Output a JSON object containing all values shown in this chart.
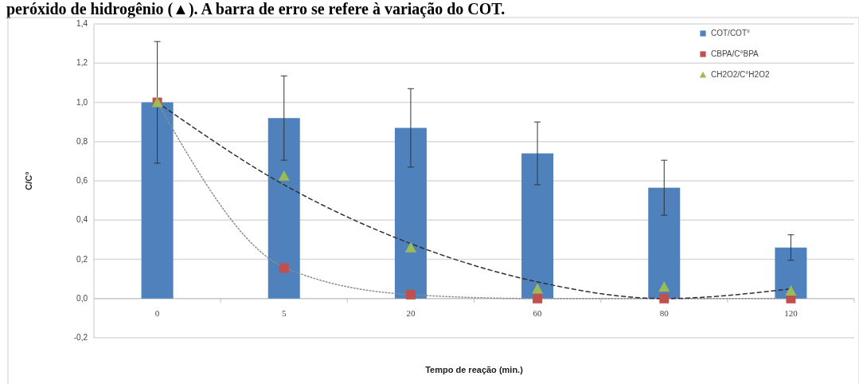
{
  "chart_data": {
    "type": "bar",
    "title": "peróxido de hidrogênio (▲). A barra de erro se refere à variação do COT.",
    "xlabel": "Tempo de reação (min.)",
    "ylabel": "C/C°",
    "categories": [
      "0",
      "5",
      "20",
      "60",
      "80",
      "120"
    ],
    "series": [
      {
        "name": "COT/COT°",
        "color": "#4f81bd",
        "values": [
          1.0,
          0.92,
          0.87,
          0.74,
          0.565,
          0.26
        ],
        "errors": [
          0.31,
          0.215,
          0.2,
          0.16,
          0.14,
          0.065
        ]
      },
      {
        "type": "line",
        "color": "#8c8c8c",
        "line_style": "dotted",
        "marker": "none",
        "values": [
          1.0,
          0.16,
          0.02,
          0.0,
          0.0,
          0.0
        ]
      },
      {
        "type": "line",
        "color": "#303030",
        "line_style": "dashed",
        "marker": "none",
        "values": [
          1.0,
          0.58,
          0.28,
          0.085,
          0.0,
          0.05
        ]
      },
      {
        "name": "CBPA/C°BPA",
        "type": "scatter",
        "marker": "square",
        "color": "#c0504d",
        "values": [
          1.0,
          0.155,
          0.02,
          0.0,
          0.0,
          0.0
        ]
      },
      {
        "name": "CH2O2/C°H2O2",
        "type": "scatter",
        "marker": "triangle",
        "color": "#9bbb59",
        "values": [
          1.0,
          0.625,
          0.26,
          0.05,
          0.06,
          0.04
        ]
      }
    ],
    "ylim": [
      -0.2,
      1.4
    ],
    "yticks": [
      {
        "value": -0.2,
        "label": "-0,2"
      },
      {
        "value": 0,
        "label": "0,0"
      },
      {
        "value": 0.2,
        "label": "0,2"
      },
      {
        "value": 0.4,
        "label": "0,4"
      },
      {
        "value": 0.6,
        "label": "0,6"
      },
      {
        "value": 0.8,
        "label": "0,8"
      },
      {
        "value": 1.0,
        "label": "1,0"
      },
      {
        "value": 1.2,
        "label": "1,2"
      },
      {
        "value": 1.4,
        "label": "1,4"
      }
    ],
    "grid": "y",
    "legend": "top right"
  }
}
